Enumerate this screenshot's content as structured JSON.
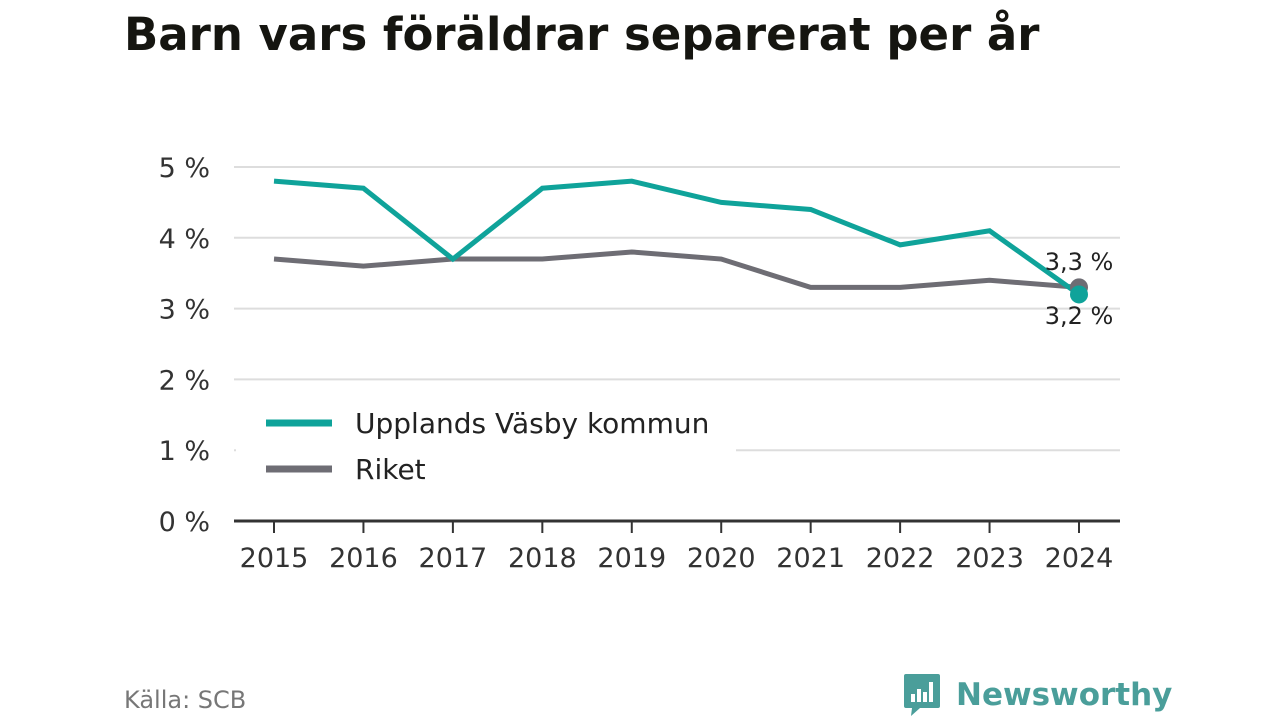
{
  "title": "Barn vars föräldrar separerat per år",
  "source": "Källa: SCB",
  "brand": "Newsworthy",
  "colors": {
    "upplands": "#0fa39a",
    "riket": "#6e6d74",
    "grid": "#dddddd",
    "axis": "#333333",
    "brand": "#4a9e9a"
  },
  "chart_data": {
    "type": "line",
    "title": "Barn vars föräldrar separerat per år",
    "x": [
      "2015",
      "2016",
      "2017",
      "2018",
      "2019",
      "2020",
      "2021",
      "2022",
      "2023",
      "2024"
    ],
    "series": [
      {
        "name": "Upplands Väsby kommun",
        "values": [
          4.8,
          4.7,
          3.7,
          4.7,
          4.8,
          4.5,
          4.4,
          3.9,
          4.1,
          3.2
        ]
      },
      {
        "name": "Riket",
        "values": [
          3.7,
          3.6,
          3.7,
          3.7,
          3.8,
          3.7,
          3.3,
          3.3,
          3.4,
          3.3
        ]
      }
    ],
    "ylim": [
      0,
      5
    ],
    "yticks": [
      0,
      1,
      2,
      3,
      4,
      5
    ],
    "ytick_labels": [
      "0 %",
      "1 %",
      "2 %",
      "3 %",
      "4 %",
      "5 %"
    ],
    "end_labels": {
      "riket": "3,3 %",
      "upplands": "3,2 %"
    },
    "grid": true,
    "legend": "bottom-left"
  }
}
